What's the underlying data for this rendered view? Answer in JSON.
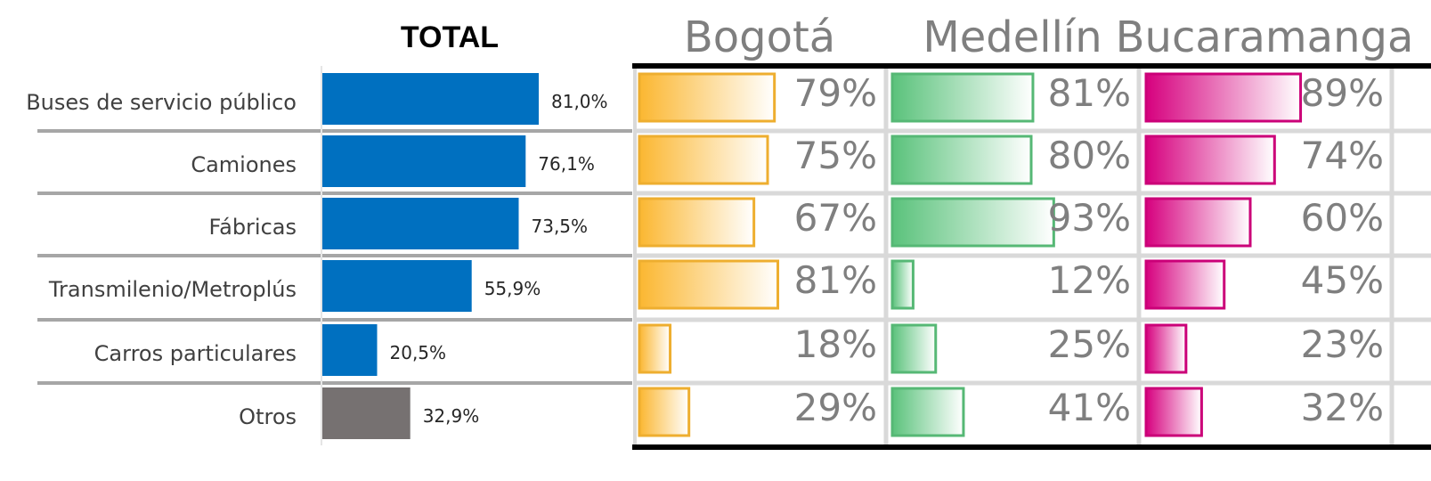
{
  "chart_data": [
    {
      "type": "bar",
      "orientation": "horizontal",
      "title": "TOTAL",
      "categories": [
        "Buses de servicio público",
        "Camiones",
        "Fábricas",
        "Transmilenio/Metroplús",
        "Carros particulares",
        "Otros"
      ],
      "values": [
        81.0,
        76.1,
        73.5,
        55.9,
        20.5,
        32.9
      ],
      "value_labels": [
        "81,0%",
        "76,1%",
        "73,5%",
        "55,9%",
        "20,5%",
        "32,9%"
      ],
      "colors": [
        "#0070c0",
        "#0070c0",
        "#0070c0",
        "#0070c0",
        "#0070c0",
        "#767171"
      ],
      "grid": false
    },
    {
      "type": "bar",
      "orientation": "horizontal",
      "title": "Bogotá",
      "categories": [
        "Buses de servicio público",
        "Camiones",
        "Fábricas",
        "Transmilenio/Metroplús",
        "Carros particulares",
        "Otros"
      ],
      "values": [
        79,
        75,
        67,
        81,
        18,
        29
      ],
      "value_labels": [
        "79%",
        "75%",
        "67%",
        "81%",
        "18%",
        "29%"
      ],
      "color": "#fbb731"
    },
    {
      "type": "bar",
      "orientation": "horizontal",
      "title": "Medellín",
      "categories": [
        "Buses de servicio público",
        "Camiones",
        "Fábricas",
        "Transmilenio/Metroplús",
        "Carros particulares",
        "Otros"
      ],
      "values": [
        81,
        80,
        93,
        12,
        25,
        41
      ],
      "value_labels": [
        "81%",
        "80%",
        "93%",
        "12%",
        "25%",
        "41%"
      ],
      "color": "#5ac27b"
    },
    {
      "type": "bar",
      "orientation": "horizontal",
      "title": "Bucaramanga",
      "categories": [
        "Buses de servicio público",
        "Camiones",
        "Fábricas",
        "Transmilenio/Metroplús",
        "Carros particulares",
        "Otros"
      ],
      "values": [
        89,
        74,
        60,
        45,
        23,
        32
      ],
      "value_labels": [
        "89%",
        "74%",
        "60%",
        "45%",
        "23%",
        "32%"
      ],
      "color": "#d6007e"
    }
  ],
  "colors": {
    "row_separator": "#a6a6a6",
    "heavy_rule": "#000000",
    "column_separator": "#d9d9d9"
  }
}
